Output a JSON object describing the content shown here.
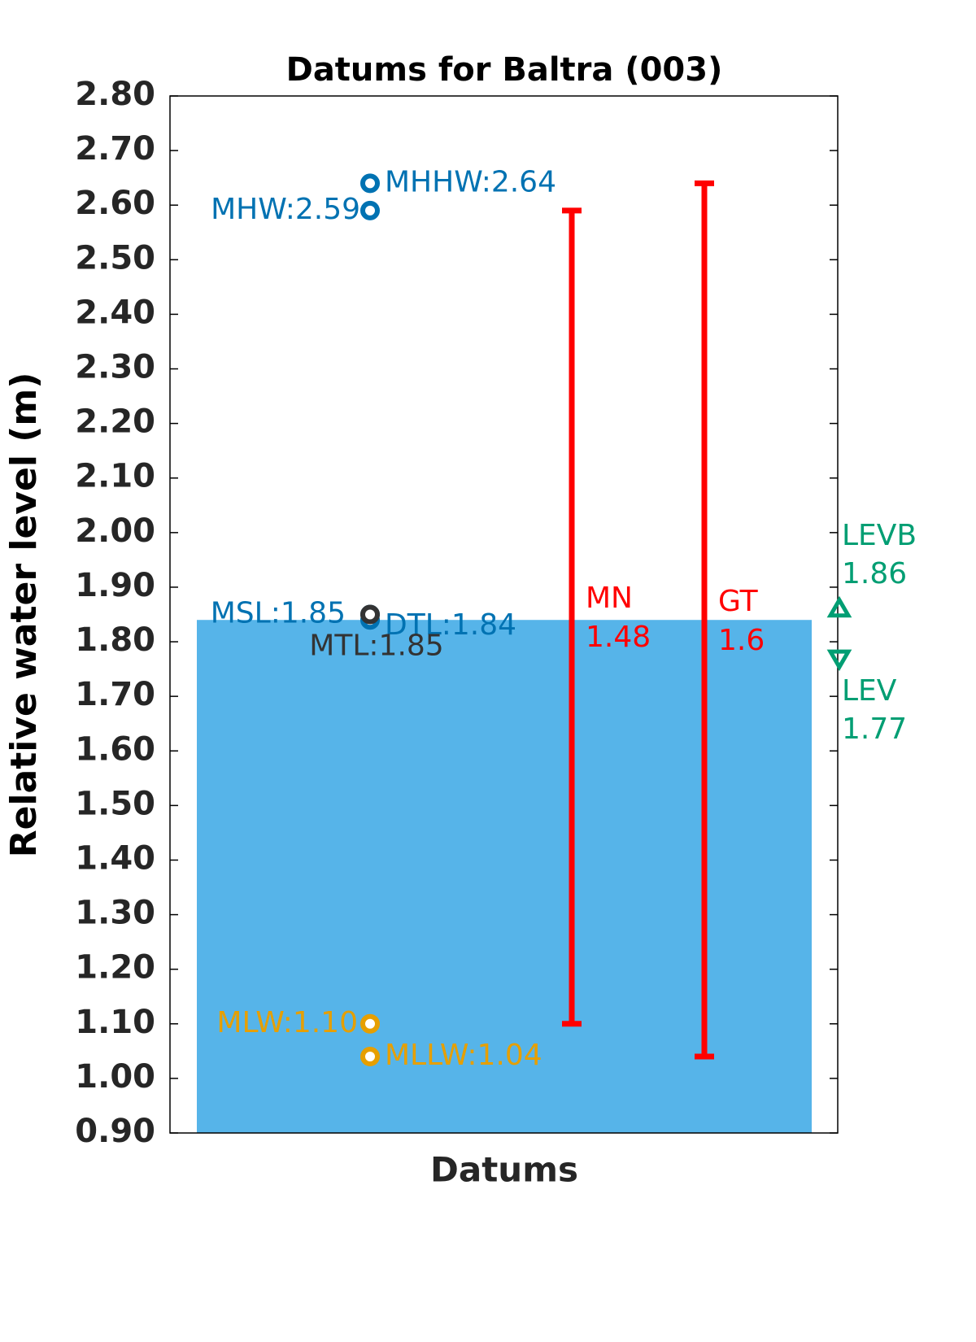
{
  "chart_data": {
    "type": "datums",
    "title": "Datums for Baltra (003)",
    "ylabel": "Relative water level (m)",
    "xlabel": "Datums",
    "ylim": [
      0.9,
      2.8
    ],
    "yticks": [
      {
        "value": 0.9,
        "label": "0.90"
      },
      {
        "value": 1.0,
        "label": "1.00"
      },
      {
        "value": 1.1,
        "label": "1.10"
      },
      {
        "value": 1.2,
        "label": "1.20"
      },
      {
        "value": 1.3,
        "label": "1.30"
      },
      {
        "value": 1.4,
        "label": "1.40"
      },
      {
        "value": 1.5,
        "label": "1.50"
      },
      {
        "value": 1.6,
        "label": "1.60"
      },
      {
        "value": 1.7,
        "label": "1.70"
      },
      {
        "value": 1.8,
        "label": "1.80"
      },
      {
        "value": 1.9,
        "label": "1.90"
      },
      {
        "value": 2.0,
        "label": "2.00"
      },
      {
        "value": 2.1,
        "label": "2.10"
      },
      {
        "value": 2.2,
        "label": "2.20"
      },
      {
        "value": 2.3,
        "label": "2.30"
      },
      {
        "value": 2.4,
        "label": "2.40"
      },
      {
        "value": 2.5,
        "label": "2.50"
      },
      {
        "value": 2.6,
        "label": "2.60"
      },
      {
        "value": 2.7,
        "label": "2.70"
      },
      {
        "value": 2.8,
        "label": "2.80"
      }
    ],
    "bar": {
      "value": 1.84,
      "color": "#56b4e9"
    },
    "points": [
      {
        "value": 2.64,
        "label": "MHHW:2.64",
        "color": "#0072b2"
      },
      {
        "value": 2.59,
        "label": "MHW:2.59",
        "color": "#0072b2"
      },
      {
        "value": 1.85,
        "label": "MSL:1.85",
        "color": "#0072b2"
      },
      {
        "value": 1.84,
        "label": "DTL:1.84",
        "color": "#0072b2"
      },
      {
        "value": 1.85,
        "label": "MTL:1.85",
        "color": "#333333"
      },
      {
        "value": 1.1,
        "label": "MLW:1.10",
        "color": "#e69f00"
      },
      {
        "value": 1.04,
        "label": "MLLW:1.04",
        "color": "#e69f00"
      }
    ],
    "ranges": [
      {
        "name": "MN",
        "low": 1.1,
        "high": 2.59,
        "value": 1.48,
        "color": "#ff0000"
      },
      {
        "name": "GT",
        "low": 1.04,
        "high": 2.64,
        "value": 1.6,
        "color": "#ff0000"
      }
    ],
    "levels": [
      {
        "name": "LEVB",
        "value": 1.86,
        "color": "#009e73",
        "marker": "triangle-up"
      },
      {
        "name": "LEV",
        "value": 1.77,
        "color": "#009e73",
        "marker": "triangle-down"
      }
    ]
  }
}
